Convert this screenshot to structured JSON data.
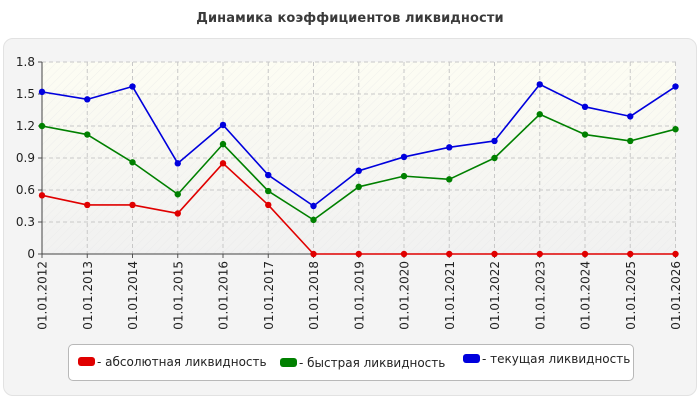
{
  "chart_data": {
    "type": "line",
    "title": "Динамика коэффициентов ликвидности",
    "categories": [
      "01.01.2012",
      "01.01.2013",
      "01.01.2014",
      "01.01.2015",
      "01.01.2016",
      "01.01.2017",
      "01.01.2018",
      "01.01.2019",
      "01.01.2020",
      "01.01.2021",
      "01.01.2022",
      "01.01.2023",
      "01.01.2024",
      "01.01.2025",
      "01.01.2026"
    ],
    "ylim": [
      0,
      1.8
    ],
    "yticks": [
      "0",
      "0.3",
      "0.6",
      "0.9",
      "1.2",
      "1.5",
      "1.8"
    ],
    "grid": true,
    "legend_position": "bottom",
    "series": [
      {
        "name": "- абсолютная ликвидность",
        "color": "#e00000",
        "values": [
          0.55,
          0.46,
          0.46,
          0.38,
          0.85,
          0.46,
          0.0,
          0.0,
          0.0,
          0.0,
          0.0,
          0.0,
          0.0,
          0.0,
          0.0
        ]
      },
      {
        "name": "- быстрая ликвидность",
        "color": "#008000",
        "values": [
          1.2,
          1.12,
          0.86,
          0.56,
          1.03,
          0.59,
          0.32,
          0.63,
          0.73,
          0.7,
          0.9,
          1.31,
          1.12,
          1.06,
          1.17
        ]
      },
      {
        "name": "- текущая ликвидность",
        "color": "#0000dd",
        "values": [
          1.52,
          1.45,
          1.57,
          0.85,
          1.21,
          0.74,
          0.45,
          0.78,
          0.91,
          1.0,
          1.06,
          1.59,
          1.38,
          1.29,
          1.57
        ]
      }
    ]
  }
}
